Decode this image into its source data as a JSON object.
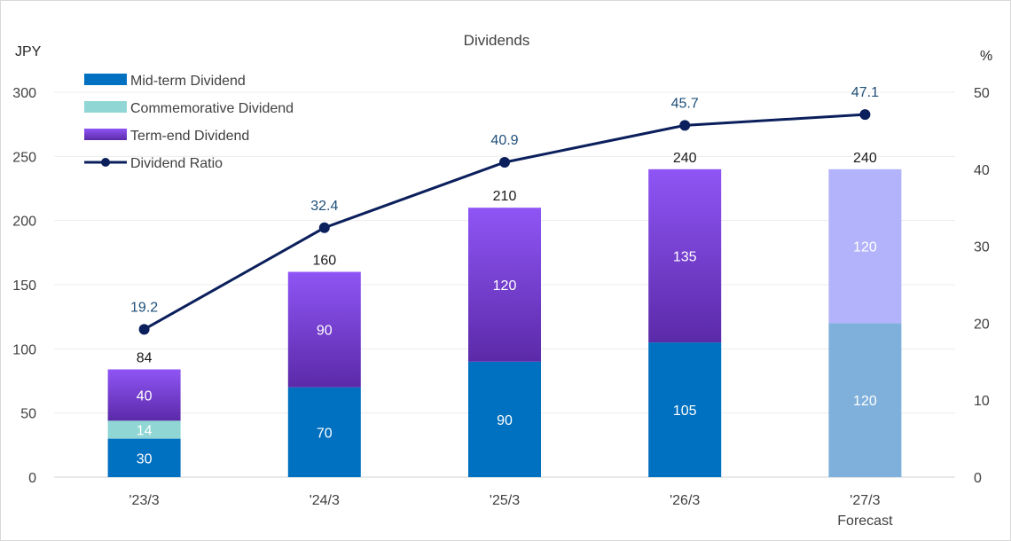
{
  "chart_data": {
    "type": "bar",
    "title": "Dividends",
    "y_left_unit": "JPY",
    "y_right_unit": "%",
    "y_left_ticks": [
      "0",
      "50",
      "100",
      "150",
      "200",
      "250",
      "300"
    ],
    "y_right_ticks": [
      "0",
      "10",
      "20",
      "30",
      "40",
      "50"
    ],
    "ylim_left": [
      0,
      300
    ],
    "ylim_right": [
      0,
      50
    ],
    "grid": true,
    "legend_position": "top-left",
    "categories": [
      "'23/3",
      "'24/3",
      "'25/3",
      "'26/3",
      "'27/3"
    ],
    "category_sublabels": [
      "",
      "",
      "",
      "",
      "Forecast"
    ],
    "series": [
      {
        "name": "Mid-term Dividend",
        "kind": "bar",
        "stack": "dividend",
        "color": "#0070c0",
        "values": [
          30,
          70,
          90,
          105,
          120
        ],
        "labels": [
          "30",
          "70",
          "90",
          "105",
          "120"
        ]
      },
      {
        "name": "Commemorative Dividend",
        "kind": "bar",
        "stack": "dividend",
        "color": "#8fd6d4",
        "values": [
          14,
          0,
          0,
          0,
          0
        ],
        "labels": [
          "14",
          "",
          "",
          "",
          ""
        ]
      },
      {
        "name": "Term-end Dividend",
        "kind": "bar",
        "stack": "dividend",
        "color": "#7b3fe4",
        "values": [
          40,
          90,
          120,
          135,
          120
        ],
        "labels": [
          "40",
          "90",
          "120",
          "135",
          "120"
        ]
      },
      {
        "name": "Dividend Ratio",
        "kind": "line",
        "axis": "right",
        "color": "#0b1f5c",
        "values": [
          19.2,
          32.4,
          40.9,
          45.7,
          47.1
        ],
        "labels": [
          "19.2",
          "32.4",
          "40.9",
          "45.7",
          "47.1"
        ]
      }
    ],
    "totals": [
      "84",
      "160",
      "210",
      "240",
      "240"
    ],
    "forecast_index": 4,
    "forecast_colors": {
      "Mid-term Dividend": "#7fb0dc",
      "Term-end Dividend": "#b3b3fb"
    }
  }
}
